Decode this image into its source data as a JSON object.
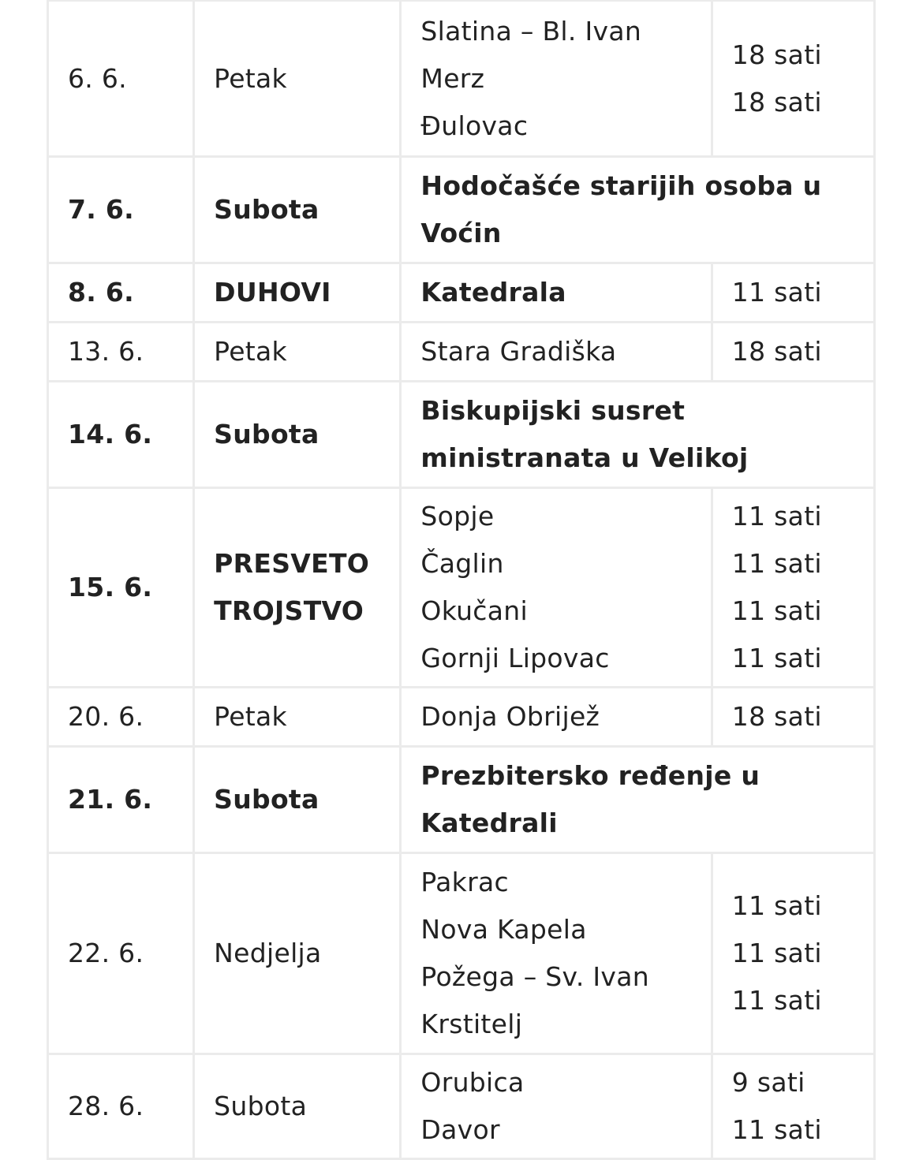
{
  "schedule": {
    "rows": [
      {
        "date": "6. 6.",
        "day": "Petak",
        "bold": false,
        "places": [
          "Slatina – Bl. Ivan",
          "Merz",
          "Đulovac"
        ],
        "times": [
          "18 sati",
          "18 sati"
        ]
      },
      {
        "date": "7. 6.",
        "day": "Subota",
        "bold": true,
        "event": "Hodočašće starijih osoba u Voćin"
      },
      {
        "date": "8. 6.",
        "day": "DUHOVI",
        "bold": true,
        "places": [
          "Katedrala"
        ],
        "times": [
          "11 sati"
        ],
        "time_bold": false
      },
      {
        "date": "13. 6.",
        "day": "Petak",
        "bold": false,
        "places": [
          "Stara Gradiška"
        ],
        "times": [
          "18 sati"
        ]
      },
      {
        "date": "14. 6.",
        "day": "Subota",
        "bold": true,
        "event": "Biskupijski susret ministranata u Velikoj"
      },
      {
        "date": "15. 6.",
        "day": "PRESVETO TROJSTVO",
        "bold": true,
        "places": [
          "Sopje",
          "Čaglin",
          "Okučani",
          "Gornji Lipovac"
        ],
        "times": [
          "11 sati",
          "11 sati",
          "11 sati",
          "11 sati"
        ],
        "time_bold": false,
        "places_bold": false
      },
      {
        "date": "20. 6.",
        "day": "Petak",
        "bold": false,
        "places": [
          "Donja Obrijež"
        ],
        "times": [
          "18 sati"
        ]
      },
      {
        "date": "21. 6.",
        "day": "Subota",
        "bold": true,
        "event": "Prezbitersko ređenje u Katedrali"
      },
      {
        "date": "22. 6.",
        "day": "Nedjelja",
        "bold": false,
        "places": [
          "Pakrac",
          "Nova Kapela",
          "Požega – Sv. Ivan",
          "Krstitelj"
        ],
        "times": [
          "11 sati",
          "11 sati",
          "11 sati"
        ]
      },
      {
        "date": "28. 6.",
        "day": "Subota",
        "bold": false,
        "places": [
          "Orubica",
          "Davor"
        ],
        "times": [
          "9 sati",
          "11 sati"
        ]
      }
    ]
  }
}
